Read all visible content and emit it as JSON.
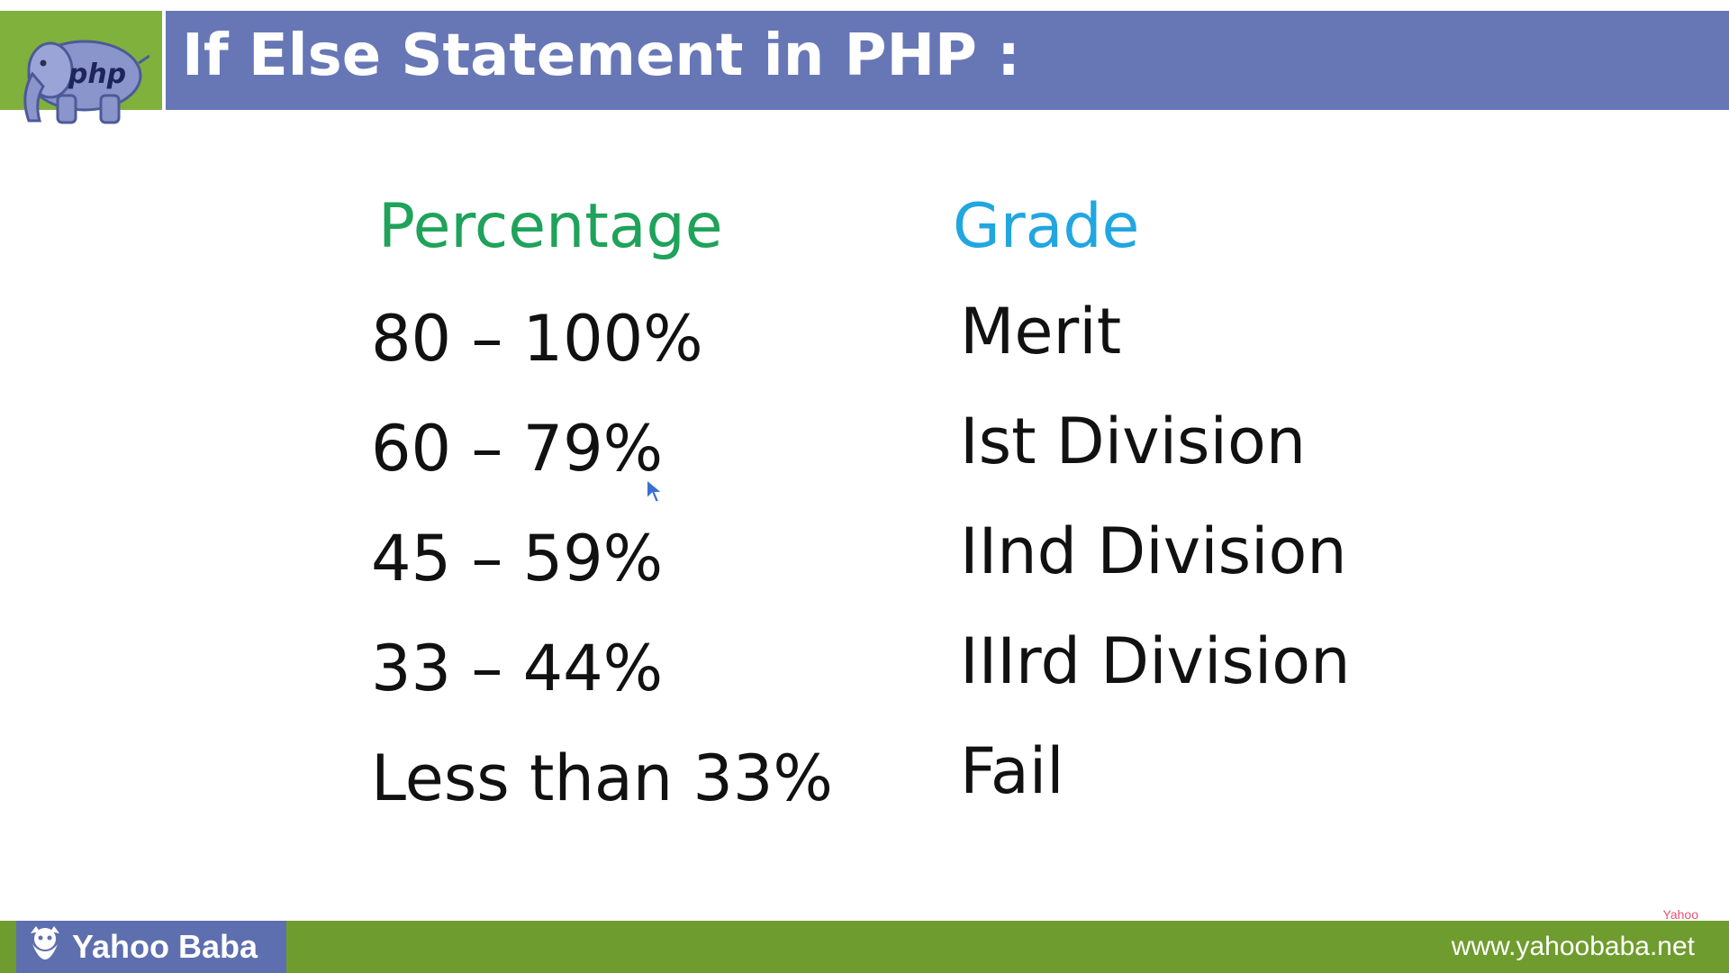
{
  "header": {
    "title": "If Else Statement in PHP :",
    "logo_icon": "php-elephant-icon",
    "logo_text": "php",
    "accent_color": "#6777b6",
    "logo_bg_color": "#7fb13c"
  },
  "table": {
    "headers": {
      "percentage": "Percentage",
      "grade": "Grade",
      "percentage_color": "#1fa25a",
      "grade_color": "#21a6e0"
    },
    "rows": [
      {
        "percentage": "80 – 100%",
        "grade": "Merit"
      },
      {
        "percentage": "60 – 79%",
        "grade": "Ist Division"
      },
      {
        "percentage": "45 – 59%",
        "grade": "IInd Division"
      },
      {
        "percentage": "33 – 44%",
        "grade": "IIIrd Division"
      },
      {
        "percentage": "Less than 33%",
        "grade": "Fail"
      }
    ]
  },
  "footer": {
    "brand": "Yahoo Baba",
    "brand_icon": "yahoo-baba-logo-icon",
    "url": "www.yahoobaba.net",
    "watermark": "Yahoo",
    "bar_color": "#6f9c2e"
  },
  "cursor_icon": "mouse-pointer-icon"
}
